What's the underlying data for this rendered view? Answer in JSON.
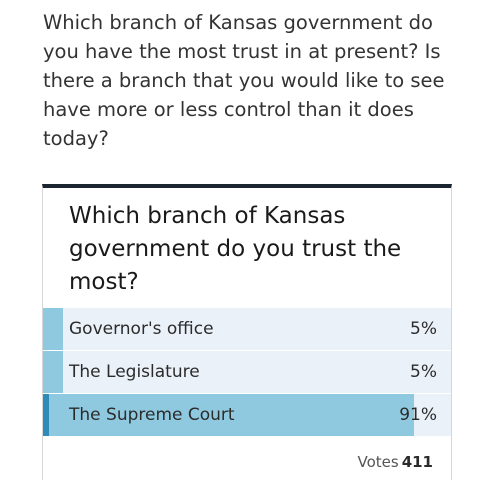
{
  "intro": {
    "question": "Which branch of Kansas government do you have the most trust in at present? Is there a branch that you would like to see have more or less control than it does today?"
  },
  "poll": {
    "question": "Which branch of Kansas government do you trust the most?",
    "options": [
      {
        "label": "Governor's office",
        "percent_text": "5%",
        "percent": 5,
        "selected": false
      },
      {
        "label": "The Legislature",
        "percent_text": "5%",
        "percent": 5,
        "selected": false
      },
      {
        "label": "The Supreme Court",
        "percent_text": "91%",
        "percent": 91,
        "selected": true
      }
    ],
    "votes_label": "Votes",
    "votes_count": "411"
  },
  "colors": {
    "bar_fill": "#8fc9e0",
    "bar_track": "#eaf1f8",
    "selected_marker": "#2f8bb8",
    "poll_top_border": "#1b2530"
  }
}
